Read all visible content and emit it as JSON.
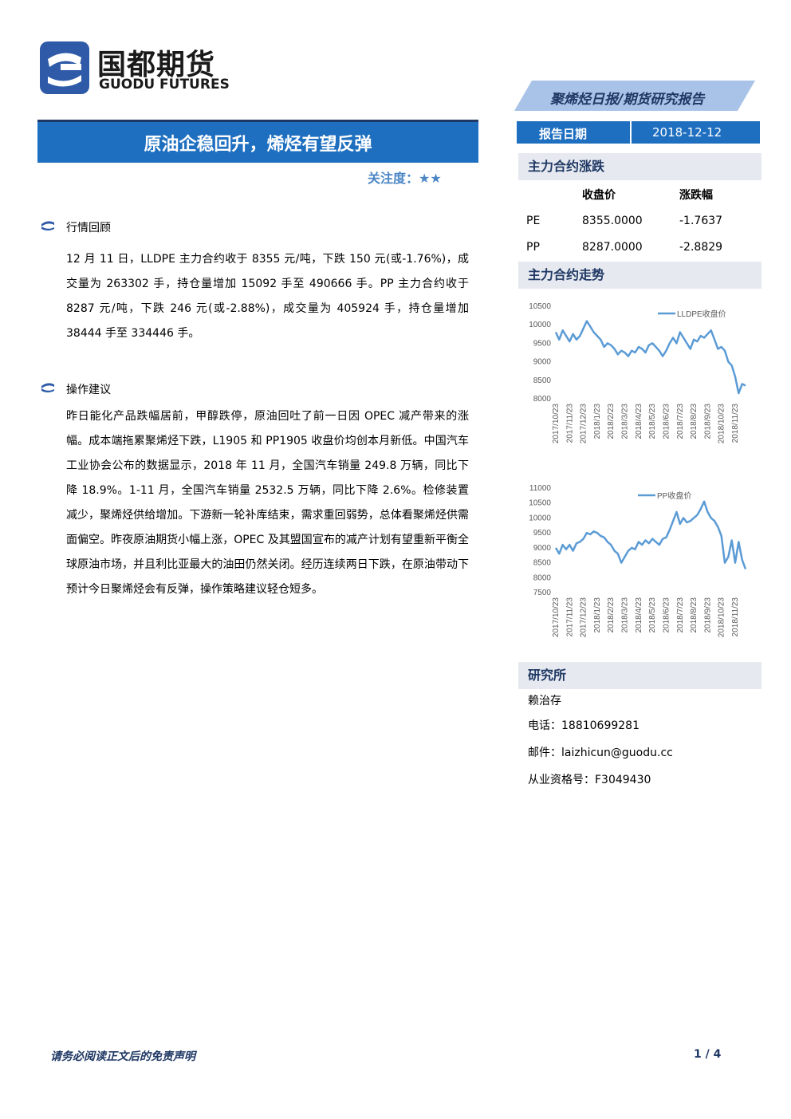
{
  "header": {
    "logo_cn": "国都期货",
    "logo_en": "GUODU FUTURES",
    "report_type": "聚烯烃日报/期货研究报告"
  },
  "title": "原油企稳回升，烯烃有望反弹",
  "attention": {
    "label": "关注度：",
    "stars": "★★"
  },
  "sections": [
    {
      "heading": "行情回顾",
      "text": "12 月 11 日，LLDPE 主力合约收于 8355 元/吨，下跌 150 元(或-1.76%)，成交量为 263302 手，持仓量增加 15092 手至 490666 手。PP 主力合约收于 8287 元/吨，下跌 246 元(或-2.88%)，成交量为 405924 手，持仓量增加 38444 手至 334446 手。"
    },
    {
      "heading": "操作建议",
      "text": "昨日能化产品跌幅居前，甲醇跌停，原油回吐了前一日因 OPEC 减产带来的涨幅。成本端拖累聚烯烃下跌，L1905 和 PP1905 收盘价均创本月新低。中国汽车工业协会公布的数据显示，2018 年 11 月，全国汽车销量 249.8 万辆，同比下降 18.9%。1-11 月，全国汽车销量 2532.5 万辆，同比下降 2.6%。检修装置减少，聚烯烃供给增加。下游新一轮补库结束，需求重回弱势，总体看聚烯烃供需面偏空。昨夜原油期货小幅上涨，OPEC 及其盟国宣布的减产计划有望重新平衡全球原油市场，并且利比亚最大的油田仍然关闭。经历连续两日下跌，在原油带动下预计今日聚烯烃会有反弹，操作策略建议轻仓短多。"
    }
  ],
  "sidebar": {
    "date_label": "报告日期",
    "date": "2018-12-12",
    "quote_heading": "主力合约涨跌",
    "quote_table": {
      "columns": [
        "收盘价",
        "涨跌幅"
      ],
      "rows": [
        [
          "PE",
          "8355.0000",
          "-1.7637"
        ],
        [
          "PP",
          "8287.0000",
          "-2.8829"
        ]
      ]
    },
    "trend_heading": "主力合约走势",
    "research_heading": "研究所",
    "analyst": "赖治存",
    "phone": "电话：18810699281",
    "email": "邮件：laizhicun@guodu.cc",
    "license": "从业资格号：F3049430"
  },
  "chart_data": [
    {
      "type": "line",
      "categories": [
        "2017/10/23",
        null,
        null,
        null,
        "2017/11/23",
        null,
        null,
        null,
        "2017/12/23",
        null,
        null,
        null,
        "2018/1/23",
        null,
        null,
        null,
        "2018/2/23",
        null,
        null,
        null,
        "2018/3/23",
        null,
        null,
        null,
        "2018/4/23",
        null,
        null,
        null,
        "2018/5/23",
        null,
        null,
        null,
        "2018/6/23",
        null,
        null,
        null,
        "2018/7/23",
        null,
        null,
        null,
        "2018/8/23",
        null,
        null,
        null,
        "2018/9/23",
        null,
        null,
        null,
        "2018/10/23",
        null,
        null,
        null,
        "2018/11/23",
        null,
        null,
        null
      ],
      "series": [
        {
          "name": "LLDPE收盘价",
          "color": "#5b9bd5",
          "values": [
            9800,
            9600,
            9850,
            9700,
            9550,
            9750,
            9600,
            9700,
            9900,
            10100,
            9950,
            9800,
            9700,
            9600,
            9400,
            9500,
            9450,
            9350,
            9200,
            9300,
            9250,
            9150,
            9300,
            9250,
            9400,
            9350,
            9250,
            9450,
            9500,
            9400,
            9300,
            9150,
            9300,
            9500,
            9650,
            9500,
            9800,
            9650,
            9500,
            9350,
            9600,
            9550,
            9700,
            9650,
            9750,
            9850,
            9600,
            9350,
            9400,
            9300,
            9000,
            8900,
            8600,
            8150,
            8400,
            8355
          ]
        }
      ],
      "ylim": [
        8000,
        10500
      ],
      "yticks": [
        8000,
        8500,
        9000,
        9500,
        10000,
        10500
      ]
    },
    {
      "type": "line",
      "categories": [
        "2017/10/23",
        null,
        null,
        null,
        "2017/11/23",
        null,
        null,
        null,
        "2017/12/23",
        null,
        null,
        null,
        "2018/1/23",
        null,
        null,
        null,
        "2018/2/23",
        null,
        null,
        null,
        "2018/3/23",
        null,
        null,
        null,
        "2018/4/23",
        null,
        null,
        null,
        "2018/5/23",
        null,
        null,
        null,
        "2018/6/23",
        null,
        null,
        null,
        "2018/7/23",
        null,
        null,
        null,
        "2018/8/23",
        null,
        null,
        null,
        "2018/9/23",
        null,
        null,
        null,
        "2018/10/23",
        null,
        null,
        null,
        "2018/11/23",
        null,
        null,
        null
      ],
      "series": [
        {
          "name": "PP收盘价",
          "color": "#5b9bd5",
          "values": [
            9000,
            8800,
            9100,
            8950,
            9100,
            8900,
            9150,
            9200,
            9300,
            9500,
            9450,
            9550,
            9500,
            9400,
            9350,
            9200,
            9100,
            8900,
            8800,
            8500,
            8700,
            8900,
            9000,
            8950,
            9200,
            9100,
            9250,
            9150,
            9300,
            9200,
            9100,
            9300,
            9350,
            9600,
            9900,
            10200,
            9800,
            10000,
            9850,
            9900,
            10000,
            10100,
            10300,
            10550,
            10200,
            10000,
            9900,
            9700,
            9400,
            8500,
            8700,
            9250,
            8500,
            9200,
            8600,
            8287
          ]
        }
      ],
      "ylim": [
        7500,
        11000
      ],
      "yticks": [
        7500,
        8000,
        8500,
        9000,
        9500,
        10000,
        10500,
        11000
      ]
    }
  ],
  "footer": {
    "disclaimer": "请务必阅读正文后的免责声明",
    "page": "1 / 4"
  }
}
